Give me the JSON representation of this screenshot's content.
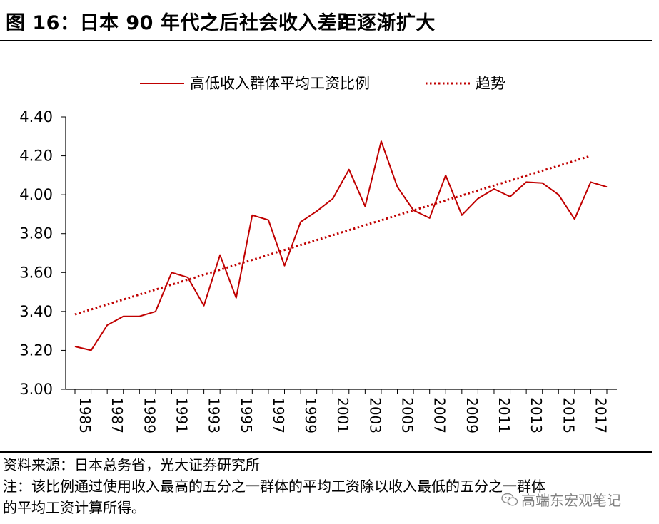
{
  "title": "图 16：日本 90 年代之后社会收入差距逐渐扩大",
  "notes": {
    "source": "资料来源：日本总务省，光大证券研究所",
    "note_line1": "注：该比例通过使用收入最高的五分之一群体的平均工资除以收入最低的五分之一群体",
    "note_line2": "的平均工资计算所得。"
  },
  "watermark": {
    "text": "高端东宏观笔记",
    "icon": "wechat-icon"
  },
  "colors": {
    "series": "#c00000",
    "axis": "#000000"
  },
  "chart_data": {
    "type": "line",
    "x": [
      1985,
      1986,
      1987,
      1988,
      1989,
      1990,
      1991,
      1992,
      1993,
      1994,
      1995,
      1996,
      1997,
      1998,
      1999,
      2000,
      2001,
      2002,
      2003,
      2004,
      2005,
      2006,
      2007,
      2008,
      2009,
      2010,
      2011,
      2012,
      2013,
      2014,
      2015,
      2016,
      2017,
      2018
    ],
    "x_tick_labels": [
      "1985",
      "1987",
      "1989",
      "1991",
      "1993",
      "1995",
      "1997",
      "1999",
      "2001",
      "2003",
      "2005",
      "2007",
      "2009",
      "2011",
      "2013",
      "2015",
      "2017"
    ],
    "series": [
      {
        "name": "高低收入群体平均工资比例",
        "style": "solid",
        "values": [
          3.22,
          3.2,
          3.33,
          3.375,
          3.375,
          3.4,
          3.6,
          3.575,
          3.43,
          3.69,
          3.47,
          3.895,
          3.87,
          3.635,
          3.86,
          3.915,
          3.98,
          4.13,
          3.94,
          4.275,
          4.04,
          3.92,
          3.88,
          4.1,
          3.895,
          3.98,
          4.03,
          3.99,
          4.065,
          4.06,
          4.0,
          3.875,
          4.065,
          4.04
        ]
      },
      {
        "name": "趋势",
        "style": "dotted",
        "x_range": [
          1985,
          2017
        ],
        "y_range": [
          3.385,
          4.2
        ]
      }
    ],
    "y_ticks": [
      "3.00",
      "3.20",
      "3.40",
      "3.60",
      "3.80",
      "4.00",
      "4.20",
      "4.40"
    ],
    "ylim": [
      3.0,
      4.4
    ],
    "xlim": [
      1985,
      2018
    ],
    "legend_position": "top"
  }
}
